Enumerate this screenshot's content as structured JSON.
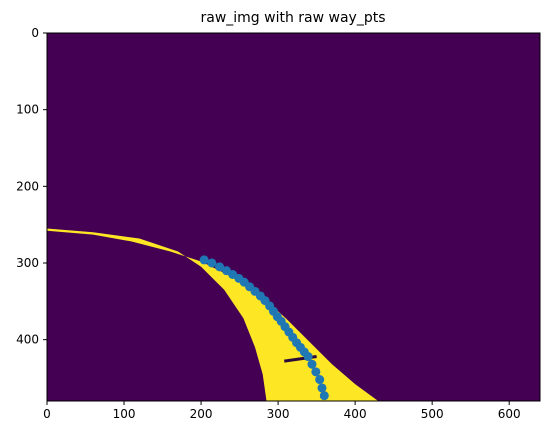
{
  "chart_data": {
    "type": "scatter",
    "title": "raw_img with raw way_pts",
    "xlabel": "",
    "ylabel": "",
    "xlim": [
      0,
      640
    ],
    "ylim": [
      480,
      0
    ],
    "y_inverted": true,
    "grid": false,
    "legend": "none",
    "x_ticks": [
      0,
      100,
      200,
      300,
      400,
      500,
      600
    ],
    "y_ticks": [
      0,
      100,
      200,
      300,
      400
    ],
    "background_image": {
      "description_colors": {
        "background": "#440154",
        "lane": "#fde725"
      },
      "lane_left_edge": [
        [
          0,
          255
        ],
        [
          60,
          260
        ],
        [
          120,
          268
        ],
        [
          170,
          285
        ],
        [
          200,
          305
        ],
        [
          230,
          335
        ],
        [
          255,
          372
        ],
        [
          270,
          410
        ],
        [
          280,
          445
        ],
        [
          285,
          480
        ]
      ],
      "lane_right_edge": [
        [
          0,
          258
        ],
        [
          60,
          263
        ],
        [
          110,
          272
        ],
        [
          160,
          285
        ],
        [
          200,
          298
        ],
        [
          240,
          318
        ],
        [
          280,
          345
        ],
        [
          310,
          372
        ],
        [
          340,
          402
        ],
        [
          370,
          432
        ],
        [
          400,
          458
        ],
        [
          430,
          480
        ]
      ],
      "dark_mark": [
        [
          308,
          428
        ],
        [
          350,
          422
        ]
      ]
    },
    "series": [
      {
        "color": "#1f77b4",
        "x": [
          204,
          214,
          224,
          233,
          241,
          249,
          256,
          263,
          270,
          277,
          283,
          289,
          294,
          299,
          304,
          309,
          314,
          319,
          324,
          329,
          334,
          339,
          344,
          349,
          354,
          357,
          360
        ],
        "y": [
          296,
          300,
          305,
          310,
          315,
          320,
          325,
          331,
          337,
          343,
          349,
          356,
          363,
          370,
          376,
          383,
          390,
          397,
          404,
          410,
          416,
          422,
          432,
          442,
          452,
          463,
          473
        ]
      }
    ]
  }
}
